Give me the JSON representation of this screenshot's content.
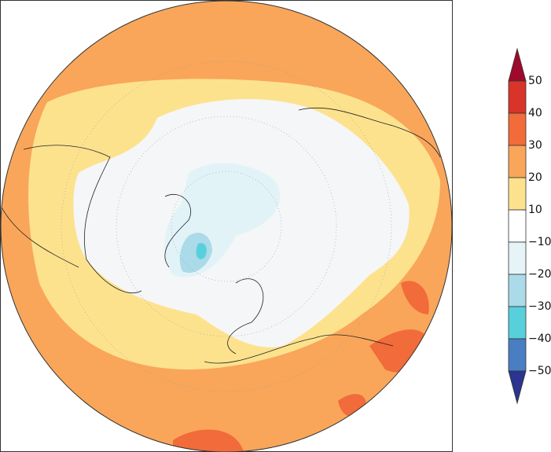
{
  "colorbar": {
    "ticks": [
      50,
      40,
      30,
      20,
      10,
      {
        "value": -10,
        "label": "−10"
      },
      {
        "value": -20,
        "label": "−20"
      },
      {
        "value": -30,
        "label": "−30"
      },
      {
        "value": -40,
        "label": "−40"
      },
      {
        "value": -50,
        "label": "−50"
      }
    ],
    "colors": [
      "#9e0a2b",
      "#d8342a",
      "#f26b3a",
      "#f9a65a",
      "#fde28e",
      "#ffffff",
      "#e6f4f8",
      "#abdae8",
      "#58d0dc",
      "#4a7ec2",
      "#2b3590"
    ]
  }
}
